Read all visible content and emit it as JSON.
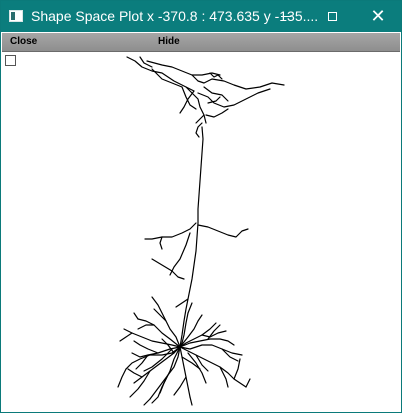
{
  "window": {
    "title": "Shape Space Plot x -370.8 : 473.635  y -135....",
    "title_bar_color": "#0b7d7d",
    "controls": {
      "minimize_icon": "minimize-icon",
      "maximize_icon": "maximize-icon",
      "close_icon": "close-icon",
      "close_glyph": "✕"
    }
  },
  "menu": {
    "close_label": "Close",
    "hide_label": "Hide"
  },
  "plot": {
    "content": "neuron-morphology",
    "stroke_color": "#000000",
    "background": "#ffffff"
  }
}
